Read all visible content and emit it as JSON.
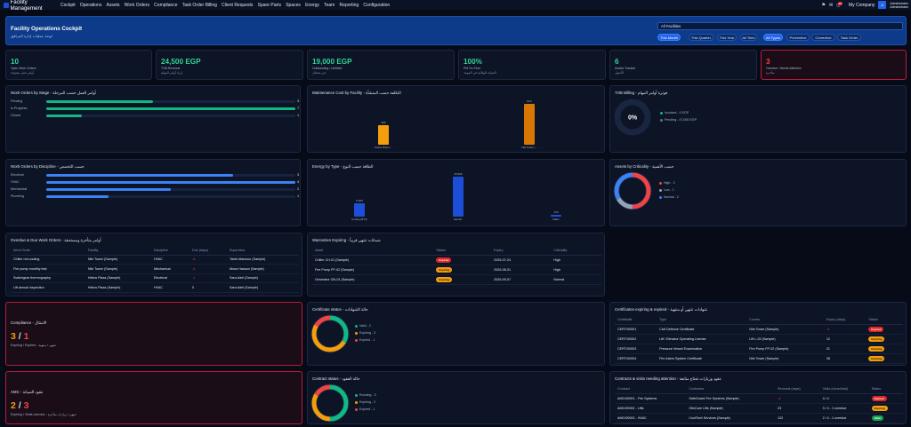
{
  "nav": {
    "brand": "Facility Management",
    "items": [
      "Cockpit",
      "Operations",
      "Assets",
      "Work Orders",
      "Compliance",
      "Task Order Billing",
      "Client Requests",
      "Spare Parts",
      "Spaces",
      "Energy",
      "Team",
      "Reporting",
      "Configuration"
    ],
    "notif_count": "24",
    "company": "My Company",
    "avatar_letter": "A",
    "user_name": "Administrator",
    "user_role": "Administrator"
  },
  "header": {
    "title": "Facility Operations Cockpit",
    "subtitle": "لوحة عمليات إدارة المرافق",
    "facility_select": "All Facilities",
    "period_filters": [
      "This Month",
      "This Quarter",
      "This Year",
      "All Time"
    ],
    "type_filters": [
      "All Types",
      "Preventive",
      "Corrective",
      "Task Order"
    ]
  },
  "kpis": [
    {
      "value": "10",
      "label": "Open Work Orders",
      "label_ar": "أوامر عمل مفتوحة",
      "color": "#34d399"
    },
    {
      "value": "24,500 EGP",
      "label": "TOB Revenue",
      "label_ar": "إيراد أوامر المهام",
      "color": "#34d399"
    },
    {
      "value": "19,000 EGP",
      "label": "Outstanding / Unbilled",
      "label_ar": "غير محصّل",
      "color": "#34d399"
    },
    {
      "value": "100%",
      "label": "PM On-Time",
      "label_ar": "الصيانة الوقائية في الموعد",
      "color": "#34d399"
    },
    {
      "value": "6",
      "label": "Assets Tracked",
      "label_ar": "الأصول",
      "color": "#34d399"
    },
    {
      "value": "3",
      "label": "Overdue / Needs Attention",
      "label_ar": "متأخرة",
      "color": "#ef4444"
    }
  ],
  "wo_stage": {
    "title": "Work Orders by Stage - أوامر العمل حسب المرحلة",
    "chart_data": {
      "type": "bar",
      "categories": [
        "Pending",
        "In Progress",
        "Closed"
      ],
      "values": [
        3,
        7,
        1
      ],
      "max": 7,
      "color": "#10b981"
    }
  },
  "maint_cost": {
    "title": "Maintenance Cost by Facility - التكلفة حسب المنشأة",
    "chart_data": {
      "type": "bar",
      "categories": [
        "Helios Plaza (...",
        "Nile Tower (..."
      ],
      "values": [
        380,
        813
      ],
      "value_labels": [
        "380",
        "813"
      ],
      "colors": [
        "#f59e0b",
        "#d97706"
      ],
      "ymax": 813
    }
  },
  "tob_billing": {
    "title": "TOB Billing - فوترة أوامر المهام",
    "center": "0%",
    "legend": [
      {
        "label": "Invoiced - 0 EGP",
        "color": "#10b981"
      },
      {
        "label": "Pending - 47,000 EGP",
        "color": "#64748b"
      }
    ],
    "chart_data": {
      "type": "pie",
      "categories": [
        "Invoiced",
        "Pending"
      ],
      "values": [
        0,
        47000
      ]
    }
  },
  "wo_discipline": {
    "title": "Work Orders by Discipline - حسب التخصص",
    "chart_data": {
      "type": "bar",
      "categories": [
        "Electrical",
        "HVAC",
        "Mechanical",
        "Plumbing"
      ],
      "values": [
        3,
        4,
        2,
        1
      ],
      "max": 4,
      "color": "#3b82f6"
    }
  },
  "energy": {
    "title": "Energy by Type - الطاقة حسب النوع",
    "chart_data": {
      "type": "bar",
      "categories": [
        "Cooling (BTU)",
        "Electric",
        "Water"
      ],
      "values": [
        5300,
        15500,
        720
      ],
      "value_labels": [
        "5,300",
        "15,500",
        "720"
      ],
      "colors": [
        "#1d4ed8",
        "#1d4ed8",
        "#1d4ed8"
      ],
      "ymax": 15500
    }
  },
  "assets_crit": {
    "title": "Assets by Criticality - حسب الأهمية",
    "legend": [
      {
        "label": "High - 3",
        "color": "#ef4444"
      },
      {
        "label": "Low - 1",
        "color": "#94a3b8"
      },
      {
        "label": "Normal - 2",
        "color": "#3b82f6"
      }
    ],
    "chart_data": {
      "type": "pie",
      "categories": [
        "High",
        "Low",
        "Normal"
      ],
      "values": [
        3,
        1,
        2
      ],
      "colors": [
        "#ef4444",
        "#94a3b8",
        "#3b82f6"
      ]
    }
  },
  "overdue_table": {
    "title": "Overdue & Due Work Orders - أوامر متأخرة ومستحقة",
    "columns": [
      "Work Order",
      "Facility",
      "Discipline",
      "Due (days)",
      "Supervisor"
    ],
    "rows": [
      [
        "Chiller not cooling",
        "Nile Tower (Sample)",
        "HVAC",
        "-4",
        "Tarek Mansour (Sample)"
      ],
      [
        "Fire pump monthly test",
        "Nile Tower (Sample)",
        "Mechanical",
        "-4",
        "Mona Hassan (Sample)"
      ],
      [
        "Switchgear thermography",
        "Helios Plaza (Sample)",
        "Electrical",
        "-1",
        "Sara Adel (Sample)"
      ],
      [
        "Lift annual inspection",
        "Helios Plaza (Sample)",
        "HVAC",
        "0",
        "Sara Adel (Sample)"
      ]
    ]
  },
  "warranties_table": {
    "title": "Warranties Expiring - ضمانات تنتهي قريباً",
    "columns": [
      "Asset",
      "Status",
      "Expiry",
      "Criticality"
    ],
    "rows": [
      [
        "Chiller CH-01 (Sample)",
        "Expired",
        "2026-07-24",
        "High"
      ],
      [
        "Fire Pump FP-02 (Sample)",
        "Expiring",
        "2026-08-31",
        "High"
      ],
      [
        "Generator GN-01 (Sample)",
        "Expiring",
        "2026-09-07",
        "Normal"
      ]
    ]
  },
  "compliance": {
    "title": "Compliance - الامتثال",
    "val_a": "3",
    "sep": "/",
    "val_b": "1",
    "label": "Expiring / Expired - تنتهي / منتهية"
  },
  "cert_status": {
    "title": "Certificate status - حالة الشهادات",
    "legend": [
      {
        "label": "Valid - 2",
        "color": "#10b981"
      },
      {
        "label": "Expiring - 3",
        "color": "#f59e0b"
      },
      {
        "label": "Expired - 1",
        "color": "#ef4444"
      }
    ],
    "chart_data": {
      "type": "pie",
      "categories": [
        "Valid",
        "Expiring",
        "Expired"
      ],
      "values": [
        2,
        3,
        1
      ],
      "colors": [
        "#10b981",
        "#f59e0b",
        "#ef4444"
      ]
    }
  },
  "cert_table": {
    "title": "Certificates expiring & expired - شهادات تنتهي أو منتهية",
    "columns": [
      "Certificate",
      "Type",
      "Covers",
      "Expiry (days)",
      "Status"
    ],
    "rows": [
      [
        "CERT/00001",
        "Civil Defence Certificate",
        "Nile Tower (Sample)",
        "-4",
        "Expired"
      ],
      [
        "CERT/00002",
        "Lift / Elevator Operating License",
        "Lift L-03 (Sample)",
        "12",
        "Expiring"
      ],
      [
        "CERT/00003",
        "Pressure Vessel Examination",
        "Fire Pump FP-02 (Sample)",
        "21",
        "Expiring"
      ],
      [
        "CERT/00004",
        "Fire Alarm System Certificate",
        "Nile Tower (Sample)",
        "28",
        "Expiring"
      ]
    ]
  },
  "amc": {
    "title": "AMC - عقود الصيانة",
    "val_a": "2",
    "sep": "/",
    "val_b": "3",
    "label": "Expiring / Visits overdue - تنتهي / زيارات متأخرة"
  },
  "contract_status": {
    "title": "Contract status - حالة العقود",
    "legend": [
      {
        "label": "Running - 3",
        "color": "#10b981"
      },
      {
        "label": "Expiring - 2",
        "color": "#f59e0b"
      },
      {
        "label": "Expired - 1",
        "color": "#ef4444"
      }
    ],
    "chart_data": {
      "type": "pie",
      "categories": [
        "Running",
        "Expiring",
        "Expired"
      ],
      "values": [
        3,
        2,
        1
      ],
      "colors": [
        "#10b981",
        "#f59e0b",
        "#ef4444"
      ]
    }
  },
  "contracts_table": {
    "title": "Contracts & visits needing attention - عقود وزيارات تحتاج متابعة",
    "columns": [
      "Contract",
      "Contractor",
      "Renewal (days)",
      "Visits (done/total)",
      "Status"
    ],
    "rows": [
      [
        "AMC/00001 - Fire Systems",
        "SafeGuard Fire Systems (Sample)",
        "-4",
        "4 / 4",
        "Expired"
      ],
      [
        "AMC/00002 - Lifts",
        "OtisCare Lifts (Sample)",
        "23",
        "3 / 4 - 1 overdue",
        "Expiring"
      ],
      [
        "AMC/00003 - HVAC",
        "CoolTech Services (Sample)",
        "122",
        "2 / 4 - 1 overdue",
        "Valid"
      ]
    ]
  }
}
